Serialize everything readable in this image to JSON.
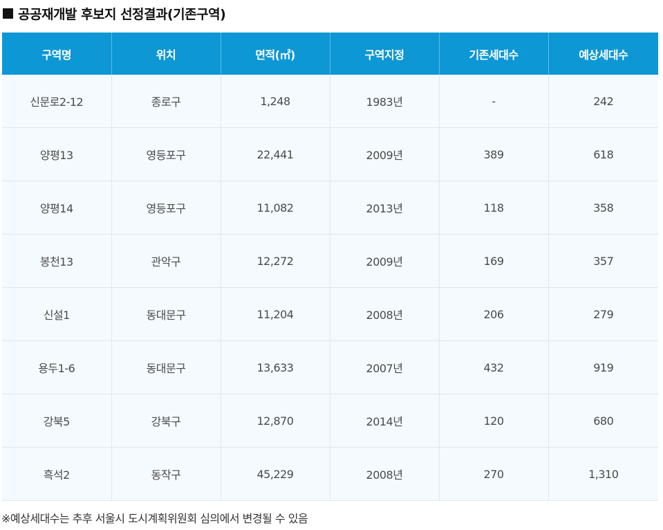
{
  "title": "공공재개발 후보지 선정결과(기존구역)",
  "table": {
    "headers": [
      "구역명",
      "위치",
      "면적(㎡)",
      "구역지정",
      "기존세대수",
      "예상세대수"
    ],
    "rows": [
      [
        "신문로2-12",
        "종로구",
        "1,248",
        "1983년",
        "-",
        "242"
      ],
      [
        "양평13",
        "영등포구",
        "22,441",
        "2009년",
        "389",
        "618"
      ],
      [
        "양평14",
        "영등포구",
        "11,082",
        "2013년",
        "118",
        "358"
      ],
      [
        "봉천13",
        "관악구",
        "12,272",
        "2009년",
        "169",
        "357"
      ],
      [
        "신설1",
        "동대문구",
        "11,204",
        "2008년",
        "206",
        "279"
      ],
      [
        "용두1-6",
        "동대문구",
        "13,633",
        "2007년",
        "432",
        "919"
      ],
      [
        "강북5",
        "강북구",
        "12,870",
        "2014년",
        "120",
        "680"
      ],
      [
        "흑석2",
        "동작구",
        "45,229",
        "2008년",
        "270",
        "1,310"
      ]
    ]
  },
  "footnote": "※예상세대수는 추후 서울시 도시계획위원회 심의에서 변경될 수 있음",
  "colors": {
    "header_bg": "#0e97d5",
    "row_bg": "#f4fafd"
  }
}
